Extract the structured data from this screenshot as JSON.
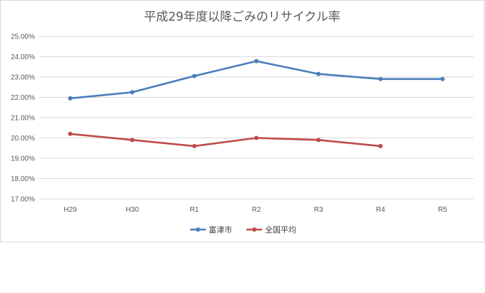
{
  "chart_data": {
    "type": "line",
    "title": "平成29年度以降ごみのリサイクル率",
    "categories": [
      "H29",
      "H30",
      "R1",
      "R2",
      "R3",
      "R4",
      "R5"
    ],
    "y_ticks": [
      "17.00%",
      "18.00%",
      "19.00%",
      "20.00%",
      "21.00%",
      "22.00%",
      "23.00%",
      "24.00%",
      "25.00%"
    ],
    "ylim": [
      17,
      25
    ],
    "grid": true,
    "legend_position": "bottom",
    "series": [
      {
        "name": "富津市",
        "color": "#4a7ebb",
        "values": [
          21.95,
          22.25,
          23.05,
          23.78,
          23.15,
          22.9,
          22.9
        ]
      },
      {
        "name": "全国平均",
        "color": "#be4b48",
        "values": [
          20.2,
          19.9,
          19.6,
          20.0,
          19.9,
          19.6,
          null
        ]
      }
    ]
  }
}
